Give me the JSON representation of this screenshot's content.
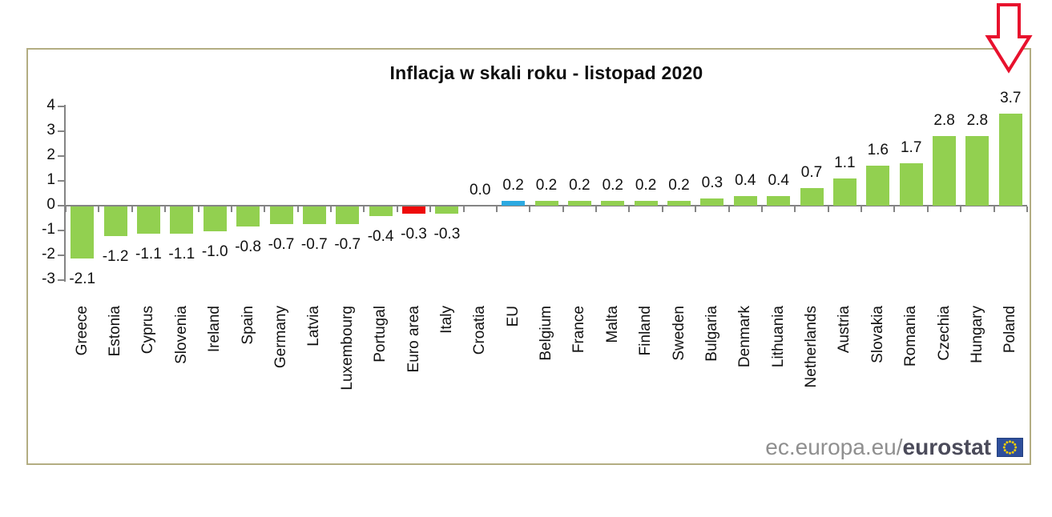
{
  "chart_data": {
    "type": "bar",
    "title": "Inflacja w skali roku - listopad 2020",
    "categories": [
      "Greece",
      "Estonia",
      "Cyprus",
      "Slovenia",
      "Ireland",
      "Spain",
      "Germany",
      "Latvia",
      "Luxembourg",
      "Portugal",
      "Euro area",
      "Italy",
      "Croatia",
      "EU",
      "Belgium",
      "France",
      "Malta",
      "Finland",
      "Sweden",
      "Bulgaria",
      "Denmark",
      "Lithuania",
      "Netherlands",
      "Austria",
      "Slovakia",
      "Romania",
      "Czechia",
      "Hungary",
      "Poland"
    ],
    "values": [
      -2.1,
      -1.2,
      -1.1,
      -1.1,
      -1.0,
      -0.8,
      -0.7,
      -0.7,
      -0.7,
      -0.4,
      -0.3,
      -0.3,
      0.0,
      0.2,
      0.2,
      0.2,
      0.2,
      0.2,
      0.2,
      0.3,
      0.4,
      0.4,
      0.7,
      1.1,
      1.6,
      1.7,
      2.8,
      2.8,
      3.7
    ],
    "ylim": [
      -3,
      4
    ],
    "yticks": [
      4,
      3,
      2,
      1,
      0,
      -1,
      -2,
      -3
    ],
    "xlabel": "",
    "ylabel": "",
    "grid": false,
    "legend_position": "none",
    "value_labels": true,
    "value_label_decimals": 1,
    "bar_color_default": "#92d050",
    "bar_color_overrides": {
      "Euro area": "#ee0a0a",
      "EU": "#2ca9e1"
    },
    "axis_color": "#848484",
    "text_color": "#111111",
    "annotation": {
      "type": "arrow-down",
      "target": "Poland",
      "color": "#e8112d"
    }
  },
  "frame": {
    "border_color": "#b3ad82"
  },
  "footer": {
    "url_prefix": "ec.europa.eu/",
    "brand": "eurostat",
    "flag_bg": "#2e4f9c",
    "flag_border": "#24407e",
    "star_color": "#f2cd00"
  }
}
